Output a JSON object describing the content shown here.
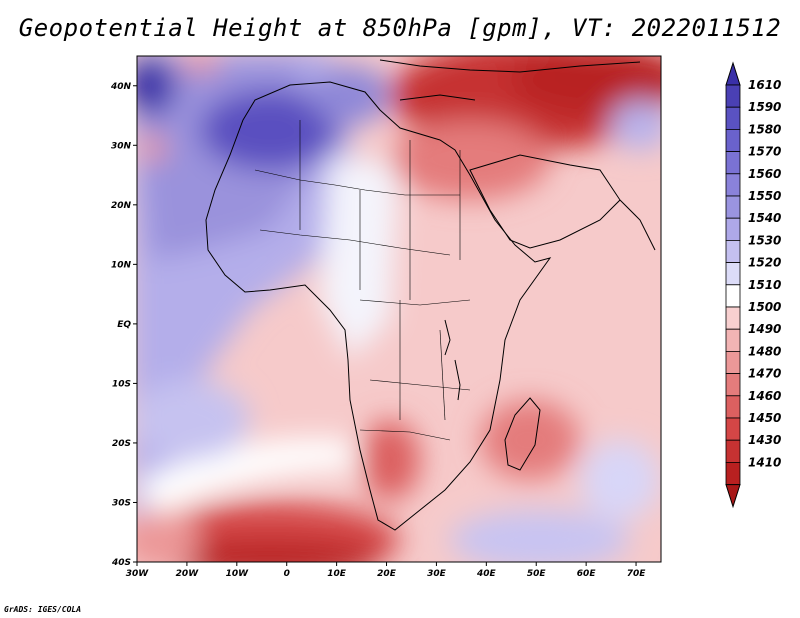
{
  "title": "Geopotential Height at 850hPa [gpm], VT: 2022011512",
  "credit": "GrADS: IGES/COLA",
  "map": {
    "variable": "Geopotential Height",
    "level": "850hPa",
    "units": "gpm",
    "valid_time": "2022011512",
    "region": "Africa",
    "lon_range": [
      -30,
      75
    ],
    "lat_range": [
      -40,
      45
    ],
    "lon_ticks": [
      "30W",
      "20W",
      "10W",
      "0",
      "10E",
      "20E",
      "30E",
      "40E",
      "50E",
      "60E",
      "70E"
    ],
    "lat_ticks": [
      "40N",
      "30N",
      "20N",
      "10N",
      "EQ",
      "10S",
      "20S",
      "30S",
      "40S"
    ]
  },
  "colorbar": {
    "levels": [
      "1610",
      "1590",
      "1580",
      "1570",
      "1560",
      "1550",
      "1540",
      "1530",
      "1520",
      "1510",
      "1500",
      "1490",
      "1480",
      "1470",
      "1460",
      "1450",
      "1430",
      "1410"
    ],
    "colors": [
      "#4a40b4",
      "#5a52c2",
      "#6a62cc",
      "#7a72d4",
      "#8a82da",
      "#9a94e0",
      "#aea8e8",
      "#c4c0f0",
      "#dcdcf8",
      "#ffffff",
      "#f8d0d0",
      "#f2b4b4",
      "#ec9898",
      "#e47c7c",
      "#dc6060",
      "#d44646",
      "#c63232",
      "#b82020"
    ],
    "top_arrow_color": "#3a30a8",
    "bottom_arrow_color": "#a81818"
  }
}
